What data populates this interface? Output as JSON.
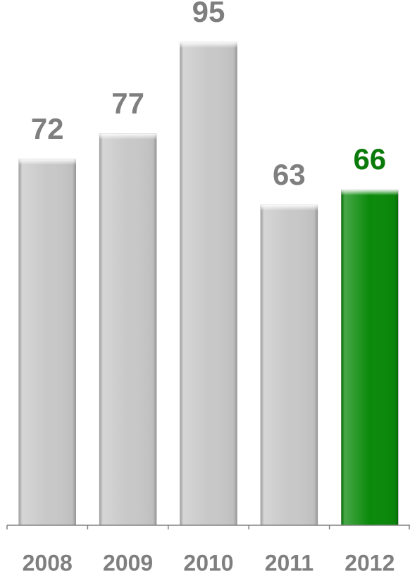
{
  "chart_data": {
    "type": "bar",
    "categories": [
      "2008",
      "2009",
      "2010",
      "2011",
      "2012"
    ],
    "values": [
      72,
      77,
      95,
      63,
      66
    ],
    "colors": [
      "#c8c8c8",
      "#c8c8c8",
      "#c8c8c8",
      "#c8c8c8",
      "#0a8a0a"
    ],
    "label_colors": [
      "#7f7f7f",
      "#7f7f7f",
      "#7f7f7f",
      "#7f7f7f",
      "#0a7a0a"
    ],
    "ylim": [
      0,
      95
    ]
  }
}
